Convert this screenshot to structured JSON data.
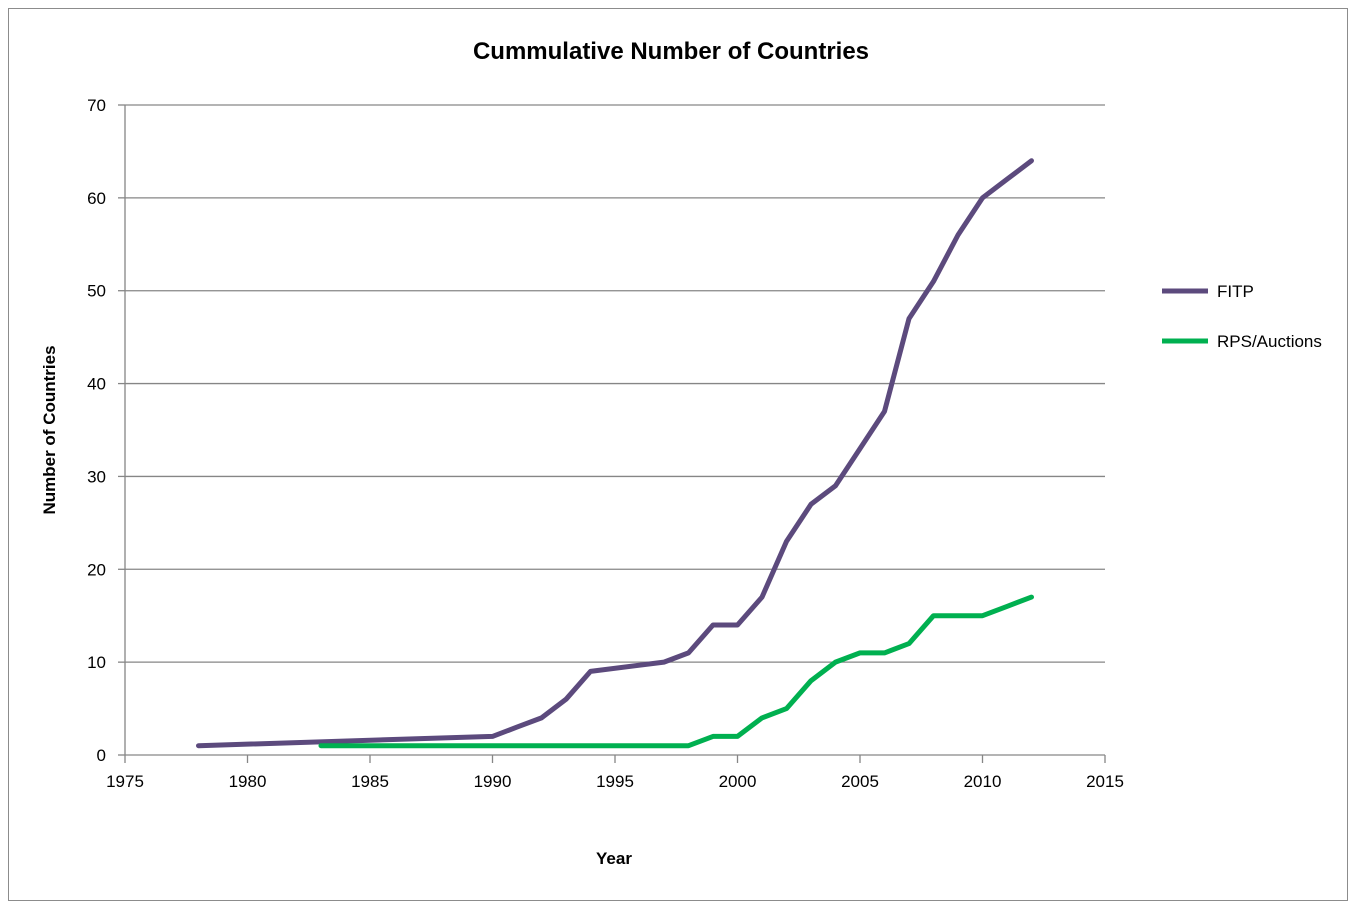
{
  "chart_data": {
    "type": "line",
    "title": "Cummulative Number of Countries",
    "xlabel": "Year",
    "ylabel": "Number of Countries",
    "xlim": [
      1975,
      2015
    ],
    "ylim": [
      0,
      70
    ],
    "x_ticks": [
      1975,
      1980,
      1985,
      1990,
      1995,
      2000,
      2005,
      2010,
      2015
    ],
    "y_ticks": [
      0,
      10,
      20,
      30,
      40,
      50,
      60,
      70
    ],
    "grid": "horizontal",
    "legend_position": "right",
    "series": [
      {
        "name": "FITP",
        "color": "#5c4a7d",
        "x": [
          1978,
          1990,
          1991,
          1992,
          1993,
          1994,
          1997,
          1998,
          1999,
          2000,
          2001,
          2002,
          2003,
          2004,
          2005,
          2006,
          2007,
          2008,
          2009,
          2010,
          2011,
          2012
        ],
        "y": [
          1,
          2,
          3,
          4,
          6,
          9,
          10,
          11,
          14,
          14,
          17,
          23,
          27,
          29,
          33,
          37,
          47,
          51,
          56,
          60,
          62,
          64
        ]
      },
      {
        "name": "RPS/Auctions",
        "color": "#00b050",
        "x": [
          1983,
          1998,
          1999,
          2000,
          2001,
          2002,
          2003,
          2004,
          2005,
          2006,
          2007,
          2008,
          2009,
          2010,
          2011,
          2012
        ],
        "y": [
          1,
          1,
          2,
          2,
          4,
          5,
          8,
          10,
          11,
          11,
          12,
          15,
          15,
          15,
          16,
          17
        ]
      }
    ]
  }
}
